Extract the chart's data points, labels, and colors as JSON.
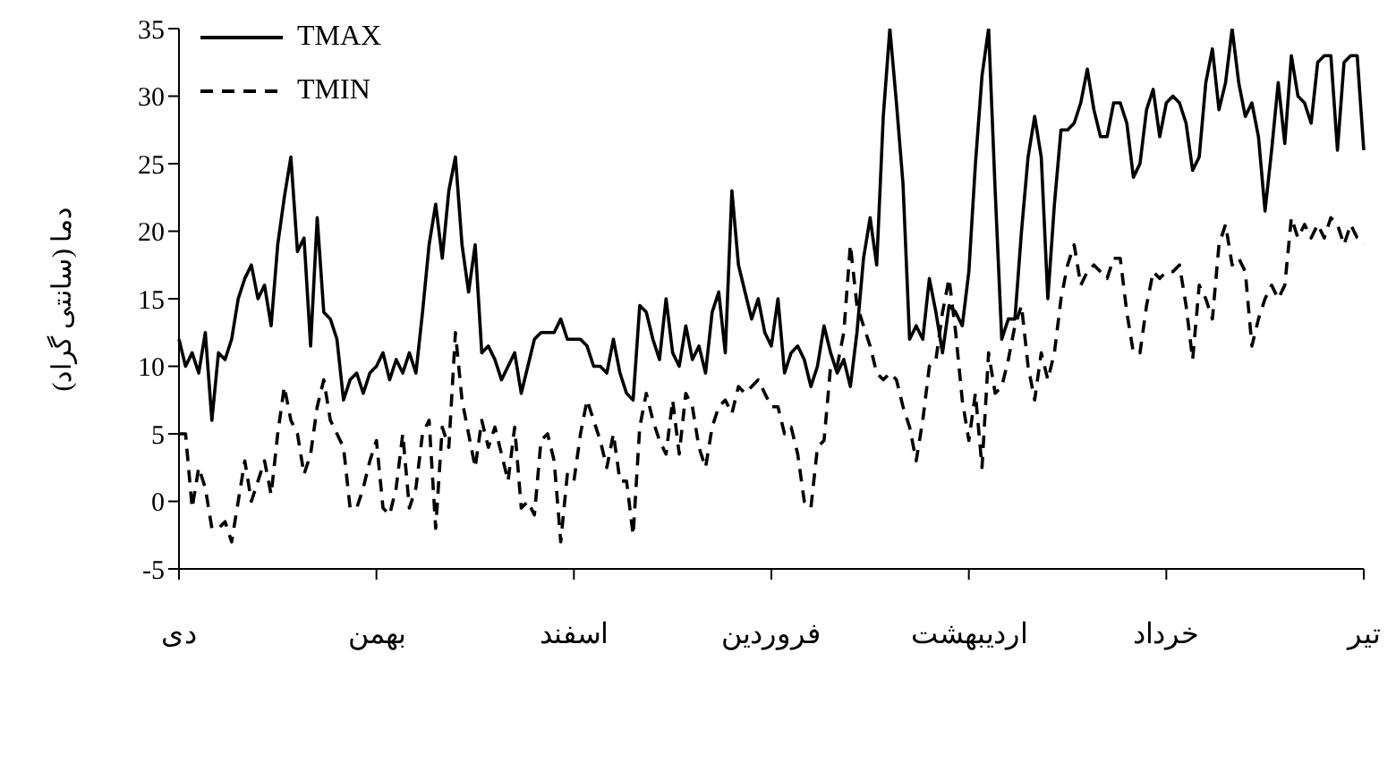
{
  "chart_data": {
    "type": "line",
    "ylabel": "دما (سانتی گراد)",
    "categories": [
      "دی",
      null,
      null,
      null,
      null,
      null,
      null,
      null,
      null,
      null,
      null,
      null,
      null,
      null,
      null,
      null,
      null,
      null,
      null,
      null,
      null,
      null,
      null,
      null,
      null,
      null,
      null,
      null,
      null,
      null,
      "بهمن",
      null,
      null,
      null,
      null,
      null,
      null,
      null,
      null,
      null,
      null,
      null,
      null,
      null,
      null,
      null,
      null,
      null,
      null,
      null,
      null,
      null,
      null,
      null,
      null,
      null,
      null,
      null,
      null,
      null,
      "اسفند",
      null,
      null,
      null,
      null,
      null,
      null,
      null,
      null,
      null,
      null,
      null,
      null,
      null,
      null,
      null,
      null,
      null,
      null,
      null,
      null,
      null,
      null,
      null,
      null,
      null,
      null,
      null,
      null,
      null,
      "فروردین",
      null,
      null,
      null,
      null,
      null,
      null,
      null,
      null,
      null,
      null,
      null,
      null,
      null,
      null,
      null,
      null,
      null,
      null,
      null,
      null,
      null,
      null,
      null,
      null,
      null,
      null,
      null,
      null,
      null,
      "اردیبهشت",
      null,
      null,
      null,
      null,
      null,
      null,
      null,
      null,
      null,
      null,
      null,
      null,
      null,
      null,
      null,
      null,
      null,
      null,
      null,
      null,
      null,
      null,
      null,
      null,
      null,
      null,
      null,
      null,
      null,
      "خرداد",
      null,
      null,
      null,
      null,
      null,
      null,
      null,
      null,
      null,
      null,
      null,
      null,
      null,
      null,
      null,
      null,
      null,
      null,
      null,
      null,
      null,
      null,
      null,
      null,
      null,
      null,
      null,
      null,
      null,
      "تیر"
    ],
    "ylim": [
      -5,
      35
    ],
    "yticks": [
      -5,
      0,
      5,
      10,
      15,
      20,
      25,
      30,
      35
    ],
    "legend": "top left",
    "marker": "none",
    "series": [
      {
        "name": "TMAX",
        "color": "#000000",
        "line_style": "solid",
        "values": [
          12,
          10,
          11,
          9.5,
          12.5,
          6,
          11,
          10.5,
          12,
          15,
          16.5,
          17.5,
          15,
          16,
          13,
          19,
          22.5,
          25.5,
          18.5,
          19.5,
          11.5,
          21,
          14,
          13.5,
          12,
          7.5,
          9,
          9.5,
          8,
          9.5,
          10,
          11,
          9,
          10.5,
          9.5,
          11,
          9.5,
          14,
          19,
          22,
          18,
          23,
          25.5,
          19,
          15.5,
          19,
          11,
          11.5,
          10.5,
          9,
          10,
          11,
          8,
          10,
          12,
          12.5,
          12.5,
          12.5,
          13.5,
          12,
          12,
          12,
          11.5,
          10,
          10,
          9.5,
          12,
          9.5,
          8,
          7.5,
          14.5,
          14,
          12,
          10.5,
          15,
          11,
          10,
          13,
          10.5,
          11.5,
          9.5,
          14,
          15.5,
          11,
          23,
          17.5,
          15.5,
          13.5,
          15,
          12.5,
          11.5,
          15,
          9.5,
          11,
          11.5,
          10.5,
          8.5,
          10,
          13,
          11,
          9.5,
          10.5,
          8.5,
          12.5,
          18,
          21,
          17.5,
          28.5,
          35,
          29.5,
          23.5,
          12,
          13,
          12,
          16.5,
          14,
          11,
          14.5,
          14,
          13,
          17,
          25,
          31.5,
          35,
          23,
          12,
          13.5,
          13.5,
          20,
          25.5,
          28.5,
          25.5,
          15,
          22,
          27.5,
          27.5,
          28,
          29.5,
          32,
          29,
          27,
          27,
          29.5,
          29.5,
          28,
          24,
          25,
          29,
          30.5,
          27,
          29.5,
          30,
          29.5,
          28,
          24.5,
          25.5,
          31,
          33.5,
          29,
          31,
          35,
          31,
          28.5,
          29.5,
          27,
          21.5,
          26,
          31,
          26.5,
          33,
          30,
          29.5,
          28,
          32.5,
          33,
          33,
          26,
          32.5,
          33,
          33,
          26
        ]
      },
      {
        "name": "TMIN",
        "color": "#000000",
        "line_style": "dashed",
        "values": [
          5,
          5,
          -0.5,
          2.5,
          1,
          -2,
          -2,
          -1.5,
          -3,
          0,
          3,
          0,
          1.5,
          3,
          0.5,
          5,
          8.5,
          6,
          5,
          2,
          3.5,
          7,
          9,
          6,
          5,
          4,
          -0.5,
          -0.5,
          1,
          3,
          4.5,
          -0.5,
          -1,
          1,
          5,
          -0.5,
          1,
          5,
          6,
          -2,
          5.5,
          4,
          12.5,
          7.5,
          5,
          2.5,
          6,
          4,
          5.5,
          3.5,
          1.5,
          5.5,
          -0.5,
          0,
          -1,
          4.5,
          5,
          3,
          -3,
          2,
          1.5,
          5,
          7.5,
          6,
          4.5,
          2.5,
          5,
          1.5,
          1.5,
          -2.5,
          5.5,
          8,
          6,
          4.5,
          3.5,
          7.5,
          3.5,
          8,
          7,
          4,
          2.5,
          5.5,
          7,
          7.5,
          6.5,
          8.5,
          8,
          8.5,
          9,
          8,
          7,
          7,
          5,
          5.5,
          3.5,
          0,
          -0.5,
          4,
          4.5,
          10,
          10,
          12.5,
          19,
          14.5,
          13,
          11.5,
          9.5,
          9,
          9.5,
          9,
          7,
          5.5,
          3,
          6,
          10,
          10.5,
          14,
          16.5,
          12.5,
          7.5,
          4.5,
          8,
          2.5,
          11,
          8,
          8.5,
          10.5,
          13,
          14.5,
          10,
          7.5,
          11,
          9,
          11,
          15,
          17.5,
          19,
          16,
          17,
          17.5,
          17,
          16.5,
          18,
          18,
          14,
          11,
          11,
          14.5,
          17,
          16.5,
          17,
          17,
          17.5,
          14.5,
          10.5,
          16,
          15,
          13.5,
          19,
          20.5,
          17.5,
          18,
          17,
          11.5,
          13.5,
          15,
          16,
          15,
          16,
          21,
          19.5,
          20.5,
          19.5,
          20.5,
          19.5,
          21,
          20.5,
          19,
          20.5,
          19.5,
          19
        ]
      }
    ]
  }
}
